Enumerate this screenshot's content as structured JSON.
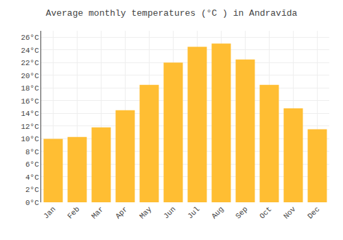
{
  "chart_data": {
    "type": "bar",
    "title": "Average monthly temperatures (°C ) in Andravĭda",
    "categories": [
      "Jan",
      "Feb",
      "Mar",
      "Apr",
      "May",
      "Jun",
      "Jul",
      "Aug",
      "Sep",
      "Oct",
      "Nov",
      "Dec"
    ],
    "values": [
      10.0,
      10.3,
      11.8,
      14.5,
      18.5,
      22.0,
      24.5,
      25.0,
      22.5,
      18.5,
      14.8,
      11.5
    ],
    "color": "#FFBE33",
    "ylim": [
      0,
      27
    ],
    "yticks": [
      {
        "value": 0,
        "label": "0°C"
      },
      {
        "value": 2,
        "label": "2°C"
      },
      {
        "value": 4,
        "label": "4°C"
      },
      {
        "value": 6,
        "label": "6°C"
      },
      {
        "value": 8,
        "label": "8°C"
      },
      {
        "value": 10,
        "label": "10°C"
      },
      {
        "value": 12,
        "label": "12°C"
      },
      {
        "value": 14,
        "label": "14°C"
      },
      {
        "value": 16,
        "label": "16°C"
      },
      {
        "value": 18,
        "label": "18°C"
      },
      {
        "value": 20,
        "label": "20°C"
      },
      {
        "value": 22,
        "label": "22°C"
      },
      {
        "value": 24,
        "label": "24°C"
      },
      {
        "value": 26,
        "label": "26°C"
      }
    ],
    "grid": true
  }
}
